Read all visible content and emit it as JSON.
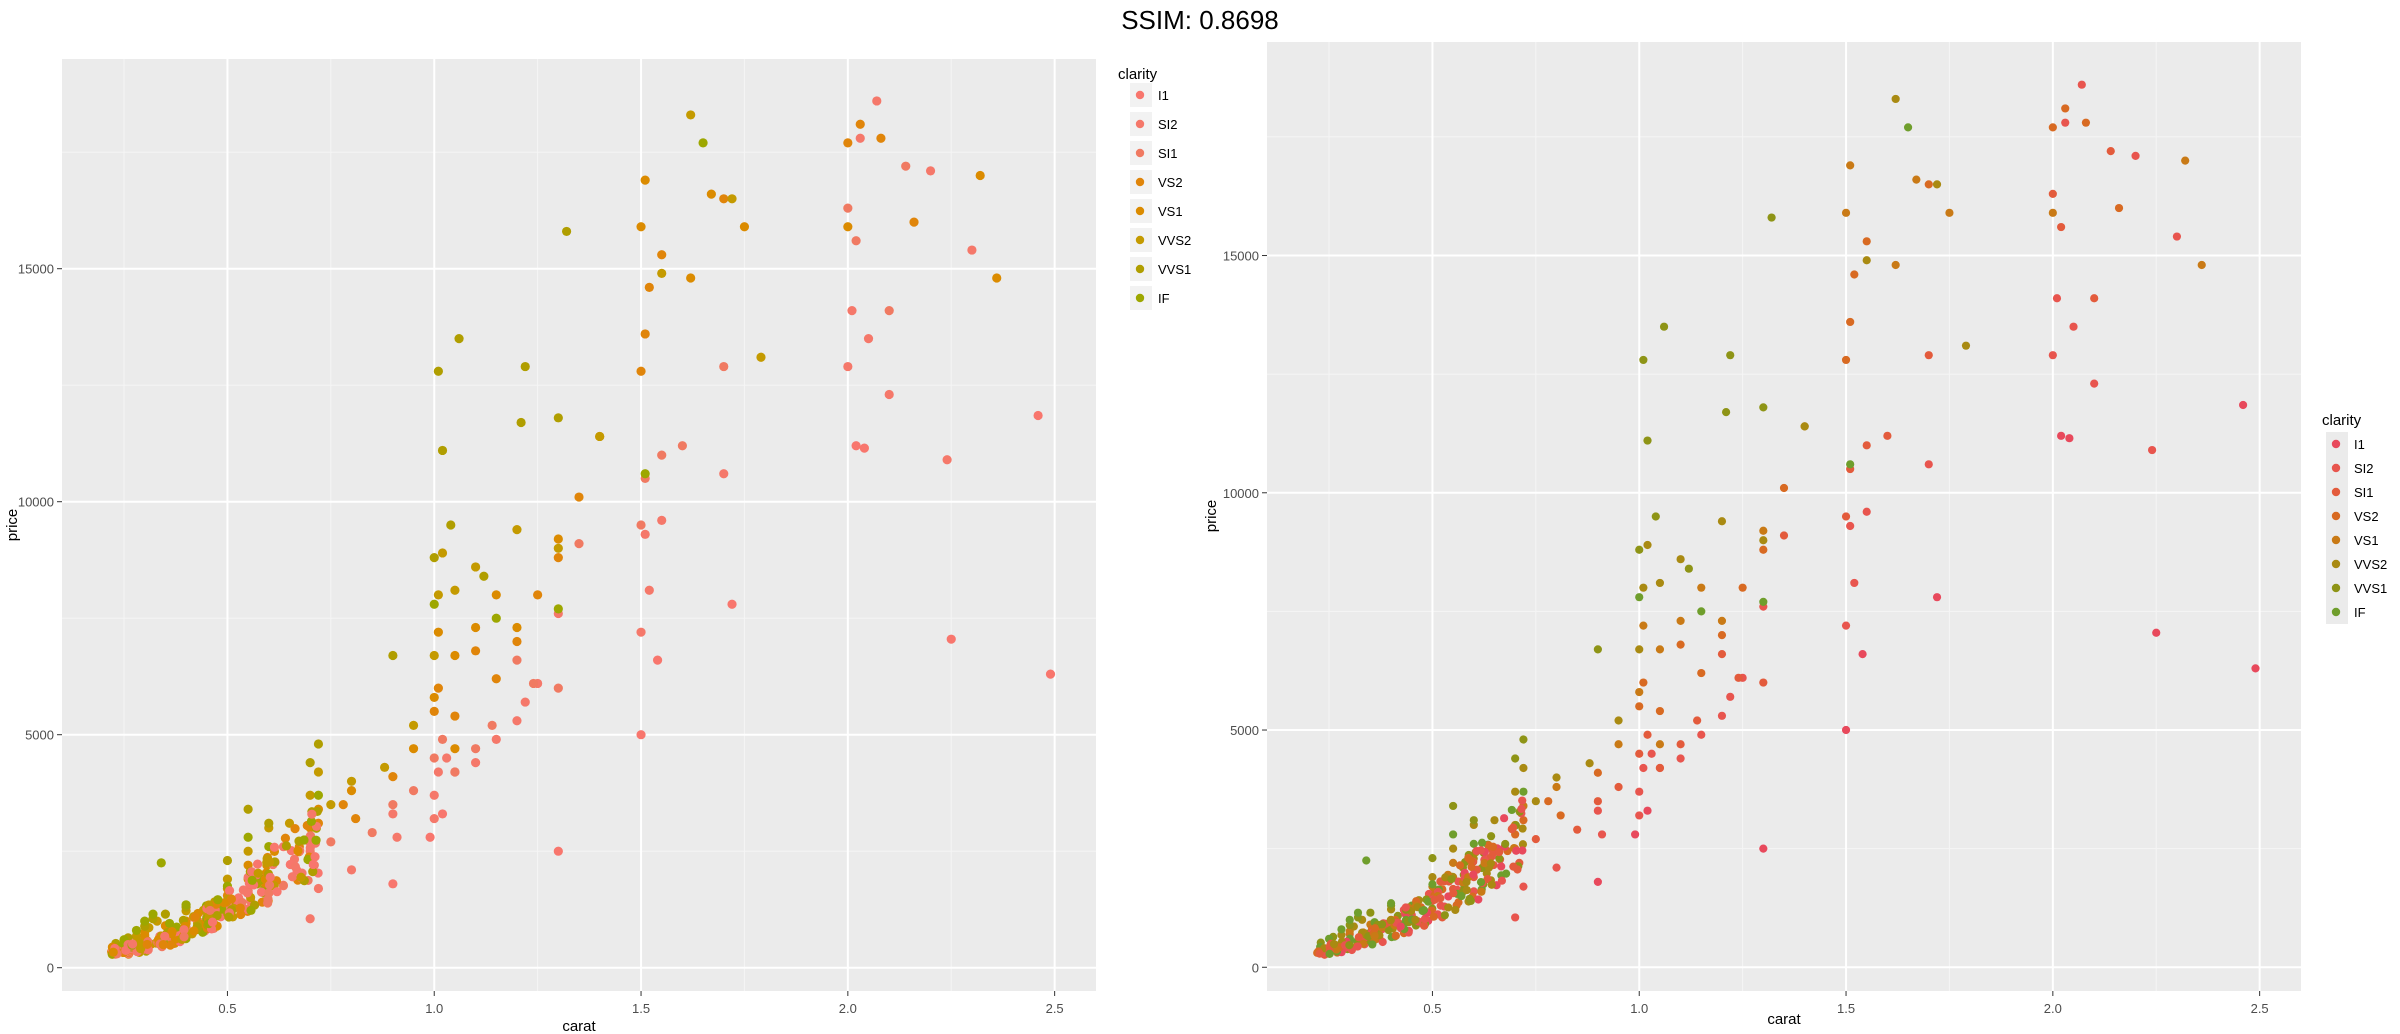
{
  "page": {
    "title": "SSIM: 0.8698"
  },
  "chart_data": [
    {
      "type": "scatter",
      "panel": "left",
      "title": "",
      "xlabel": "carat",
      "ylabel": "price",
      "xlim": [
        0.1,
        2.6
      ],
      "ylim": [
        -500,
        19500
      ],
      "xticks": [
        0.5,
        1.0,
        1.5,
        2.0,
        2.5
      ],
      "xtick_labels": [
        "0.5",
        "1.0",
        "1.5",
        "2.0",
        "2.5"
      ],
      "yticks": [
        0,
        5000,
        10000,
        15000
      ],
      "ytick_labels": [
        "0",
        "5000",
        "10000",
        "15000"
      ],
      "grid": true,
      "legend": {
        "title": "clarity",
        "placement": "right-top",
        "entries": [
          "I1",
          "SI2",
          "SI1",
          "VS2",
          "VS1",
          "VVS2",
          "VVS1",
          "IF"
        ],
        "colors": [
          "#F8766D",
          "#F5786A",
          "#F07A62",
          "#E0850A",
          "#DB8B00",
          "#C49A00",
          "#B09E00",
          "#9DA700"
        ]
      },
      "point_color_sequence": [
        "#F8766D",
        "#F5786A",
        "#F07A62",
        "#E0850A",
        "#DB8B00",
        "#C49A00",
        "#B09E00",
        "#9DA700"
      ],
      "series": [
        {
          "name": "I1",
          "points": [
            [
              0.9,
              1800
            ],
            [
              0.99,
              2800
            ],
            [
              1.02,
              3300
            ],
            [
              1.3,
              2500
            ],
            [
              1.5,
              5000
            ],
            [
              2.02,
              11200
            ],
            [
              2.25,
              7050
            ],
            [
              2.49,
              6300
            ],
            [
              2.46,
              11850
            ],
            [
              2.04,
              11150
            ],
            [
              1.72,
              7800
            ],
            [
              1.54,
              6600
            ]
          ]
        },
        {
          "name": "SI2",
          "points": [
            [
              0.7,
              1050
            ],
            [
              0.72,
              1700
            ],
            [
              0.8,
              2100
            ],
            [
              0.91,
              2800
            ],
            [
              1.0,
              3700
            ],
            [
              1.01,
              4200
            ],
            [
              1.03,
              4500
            ],
            [
              1.05,
              4200
            ],
            [
              1.1,
              4400
            ],
            [
              1.15,
              4900
            ],
            [
              1.2,
              5300
            ],
            [
              1.22,
              5700
            ],
            [
              1.25,
              6100
            ],
            [
              1.3,
              7600
            ],
            [
              1.5,
              7200
            ],
            [
              1.51,
              9300
            ],
            [
              1.52,
              8100
            ],
            [
              1.55,
              9600
            ],
            [
              1.7,
              10600
            ],
            [
              2.0,
              12900
            ],
            [
              2.01,
              14100
            ],
            [
              2.05,
              13500
            ],
            [
              2.1,
              12300
            ],
            [
              2.2,
              17100
            ],
            [
              2.3,
              15400
            ],
            [
              2.24,
              10900
            ],
            [
              2.03,
              17800
            ],
            [
              2.07,
              18600
            ],
            [
              0.45,
              1100
            ],
            [
              0.52,
              1300
            ],
            [
              0.6,
              1600
            ],
            [
              0.9,
              3300
            ],
            [
              1.0,
              3200
            ]
          ]
        },
        {
          "name": "SI1",
          "points": [
            [
              0.3,
              560
            ],
            [
              0.35,
              700
            ],
            [
              0.4,
              860
            ],
            [
              0.5,
              1400
            ],
            [
              0.55,
              1650
            ],
            [
              0.6,
              1900
            ],
            [
              0.7,
              2500
            ],
            [
              0.71,
              2200
            ],
            [
              0.75,
              2700
            ],
            [
              0.9,
              3500
            ],
            [
              1.0,
              4500
            ],
            [
              1.02,
              4900
            ],
            [
              1.05,
              4200
            ],
            [
              1.1,
              4700
            ],
            [
              1.14,
              5200
            ],
            [
              1.2,
              6600
            ],
            [
              1.24,
              6100
            ],
            [
              1.3,
              6000
            ],
            [
              1.5,
              9500
            ],
            [
              1.51,
              10500
            ],
            [
              1.55,
              11000
            ],
            [
              1.6,
              11200
            ],
            [
              1.7,
              12900
            ],
            [
              2.0,
              16300
            ],
            [
              2.02,
              15600
            ],
            [
              2.1,
              14100
            ],
            [
              2.14,
              17200
            ],
            [
              0.85,
              2900
            ],
            [
              0.95,
              3800
            ],
            [
              1.35,
              9100
            ]
          ]
        },
        {
          "name": "VS2",
          "points": [
            [
              0.3,
              700
            ],
            [
              0.4,
              950
            ],
            [
              0.5,
              1550
            ],
            [
              0.55,
              1900
            ],
            [
              0.7,
              2800
            ],
            [
              0.72,
              3100
            ],
            [
              0.78,
              3500
            ],
            [
              0.9,
              4100
            ],
            [
              1.0,
              5500
            ],
            [
              1.01,
              6000
            ],
            [
              1.05,
              5400
            ],
            [
              1.1,
              6800
            ],
            [
              1.15,
              6200
            ],
            [
              1.2,
              7000
            ],
            [
              1.25,
              8000
            ],
            [
              1.3,
              8800
            ],
            [
              1.5,
              12800
            ],
            [
              1.51,
              13600
            ],
            [
              1.52,
              14600
            ],
            [
              1.55,
              15300
            ],
            [
              1.7,
              16500
            ],
            [
              2.0,
              17700
            ],
            [
              2.03,
              18100
            ],
            [
              2.08,
              17800
            ],
            [
              2.16,
              16000
            ],
            [
              1.35,
              10100
            ],
            [
              0.81,
              3200
            ]
          ]
        },
        {
          "name": "VS1",
          "points": [
            [
              0.3,
              760
            ],
            [
              0.35,
              900
            ],
            [
              0.4,
              1000
            ],
            [
              0.5,
              1700
            ],
            [
              0.55,
              2200
            ],
            [
              0.7,
              3000
            ],
            [
              0.72,
              3400
            ],
            [
              0.8,
              3800
            ],
            [
              1.0,
              5800
            ],
            [
              1.01,
              7200
            ],
            [
              1.05,
              6700
            ],
            [
              1.1,
              7300
            ],
            [
              1.15,
              8000
            ],
            [
              1.2,
              7300
            ],
            [
              1.3,
              9200
            ],
            [
              1.4,
              11400
            ],
            [
              1.5,
              15900
            ],
            [
              1.51,
              16900
            ],
            [
              1.62,
              14800
            ],
            [
              1.67,
              16600
            ],
            [
              1.75,
              15900
            ],
            [
              2.0,
              15900
            ],
            [
              2.32,
              17000
            ],
            [
              2.36,
              14800
            ],
            [
              1.05,
              4700
            ],
            [
              0.95,
              4700
            ]
          ]
        },
        {
          "name": "VVS2",
          "points": [
            [
              0.28,
              680
            ],
            [
              0.31,
              860
            ],
            [
              0.33,
              1000
            ],
            [
              0.4,
              1220
            ],
            [
              0.5,
              1900
            ],
            [
              0.55,
              2500
            ],
            [
              0.6,
              3000
            ],
            [
              0.7,
              3700
            ],
            [
              0.72,
              4200
            ],
            [
              0.75,
              3500
            ],
            [
              0.8,
              4000
            ],
            [
              0.88,
              4300
            ],
            [
              1.0,
              6700
            ],
            [
              1.01,
              8000
            ],
            [
              1.02,
              8900
            ],
            [
              1.05,
              8100
            ],
            [
              1.1,
              8600
            ],
            [
              1.2,
              9400
            ],
            [
              1.3,
              9000
            ],
            [
              1.55,
              14900
            ],
            [
              1.62,
              18300
            ],
            [
              1.72,
              16500
            ],
            [
              1.79,
              13100
            ],
            [
              1.4,
              11400
            ],
            [
              0.95,
              5200
            ],
            [
              0.65,
              3100
            ]
          ]
        },
        {
          "name": "VVS1",
          "points": [
            [
              0.23,
              520
            ],
            [
              0.26,
              640
            ],
            [
              0.3,
              890
            ],
            [
              0.32,
              1050
            ],
            [
              0.35,
              1150
            ],
            [
              0.4,
              1300
            ],
            [
              0.5,
              2300
            ],
            [
              0.55,
              3400
            ],
            [
              0.6,
              3100
            ],
            [
              0.7,
              4400
            ],
            [
              0.72,
              4800
            ],
            [
              1.0,
              8800
            ],
            [
              1.01,
              12800
            ],
            [
              1.02,
              11100
            ],
            [
              1.06,
              13500
            ],
            [
              1.21,
              11700
            ],
            [
              1.22,
              12900
            ],
            [
              1.3,
              11800
            ],
            [
              1.32,
              15800
            ],
            [
              0.9,
              6700
            ],
            [
              1.04,
              9500
            ],
            [
              1.12,
              8400
            ]
          ]
        },
        {
          "name": "IF",
          "points": [
            [
              0.25,
              600
            ],
            [
              0.28,
              800
            ],
            [
              0.3,
              1000
            ],
            [
              0.32,
              1150
            ],
            [
              0.34,
              2250
            ],
            [
              0.4,
              1350
            ],
            [
              0.5,
              1750
            ],
            [
              0.55,
              2800
            ],
            [
              0.6,
              2600
            ],
            [
              0.72,
              3700
            ],
            [
              1.0,
              7800
            ],
            [
              1.15,
              7500
            ],
            [
              1.3,
              7700
            ],
            [
              1.51,
              10600
            ],
            [
              1.65,
              17700
            ],
            [
              0.36,
              950
            ],
            [
              0.45,
              1300
            ]
          ]
        }
      ]
    },
    {
      "type": "scatter",
      "panel": "right",
      "title": "",
      "xlabel": "carat",
      "ylabel": "price",
      "xlim": [
        0.1,
        2.6
      ],
      "ylim": [
        -500,
        19500
      ],
      "xticks": [
        0.5,
        1.0,
        1.5,
        2.0,
        2.5
      ],
      "xtick_labels": [
        "0.5",
        "1.0",
        "1.5",
        "2.0",
        "2.5"
      ],
      "yticks": [
        0,
        5000,
        10000,
        15000
      ],
      "ytick_labels": [
        "0",
        "5000",
        "10000",
        "15000"
      ],
      "grid": true,
      "legend": {
        "title": "clarity",
        "placement": "right",
        "entries": [
          "I1",
          "SI2",
          "SI1",
          "VS2",
          "VS1",
          "VVS2",
          "VVS1",
          "IF"
        ],
        "colors": [
          "#E8495C",
          "#E8554E",
          "#E35B3C",
          "#D86A22",
          "#C97A16",
          "#A98A12",
          "#8E9416",
          "#6F9E2C"
        ]
      },
      "point_color_sequence": [
        "#E8495C",
        "#E8554E",
        "#E35B3C",
        "#D86A22",
        "#C97A16",
        "#A98A12",
        "#8E9416",
        "#6F9E2C"
      ],
      "series_same_as": "left"
    }
  ]
}
